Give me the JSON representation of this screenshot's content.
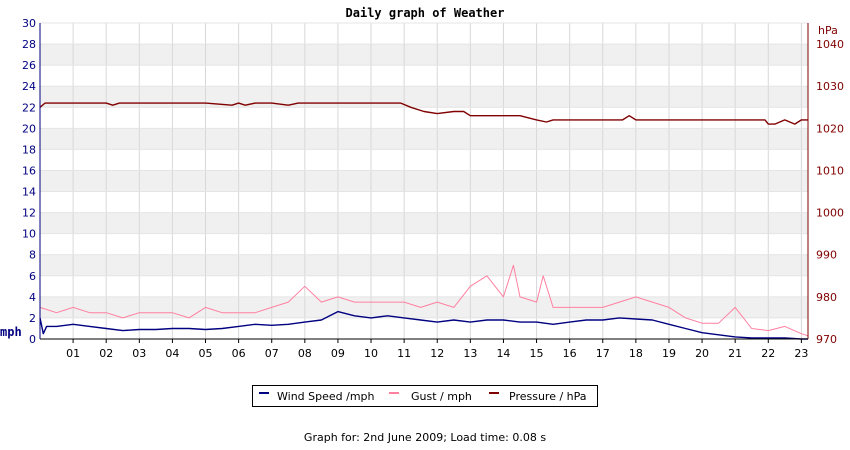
{
  "chart_data": {
    "type": "line",
    "title": "Daily graph of Weather",
    "left_axis": {
      "label": "mph",
      "ylim": [
        0,
        30
      ],
      "ticks": [
        0,
        2,
        4,
        6,
        8,
        10,
        12,
        14,
        16,
        18,
        20,
        22,
        24,
        26,
        28,
        30
      ]
    },
    "right_axis": {
      "label": "hPa",
      "ylim": [
        970,
        1045
      ],
      "ticks": [
        970,
        980,
        990,
        1000,
        1010,
        1020,
        1030,
        1040
      ]
    },
    "x_axis": {
      "xlim": [
        0,
        23.2
      ],
      "tick_labels": [
        "01",
        "02",
        "03",
        "04",
        "05",
        "06",
        "07",
        "08",
        "09",
        "10",
        "11",
        "12",
        "13",
        "14",
        "15",
        "16",
        "17",
        "18",
        "19",
        "20",
        "21",
        "22",
        "23"
      ]
    },
    "grid": true,
    "legend_placement": "bottom-center",
    "series": [
      {
        "name": "Wind Speed /mph",
        "color": "#000080",
        "axis": "left",
        "x": [
          0,
          0.1,
          0.2,
          0.5,
          1,
          1.5,
          2,
          2.5,
          3,
          3.5,
          4,
          4.5,
          5,
          5.5,
          6,
          6.5,
          7,
          7.5,
          8,
          8.5,
          9,
          9.5,
          10,
          10.5,
          11,
          11.5,
          12,
          12.5,
          13,
          13.5,
          14,
          14.5,
          15,
          15.5,
          16,
          16.5,
          17,
          17.5,
          18,
          18.5,
          19,
          19.5,
          20,
          20.5,
          21,
          21.5,
          22,
          22.5,
          23,
          23.2
        ],
        "y": [
          2,
          0.5,
          1.2,
          1.2,
          1.4,
          1.2,
          1,
          0.8,
          0.9,
          0.9,
          1,
          1,
          0.9,
          1,
          1.2,
          1.4,
          1.3,
          1.4,
          1.6,
          1.8,
          2.6,
          2.2,
          2,
          2.2,
          2,
          1.8,
          1.6,
          1.8,
          1.6,
          1.8,
          1.8,
          1.6,
          1.6,
          1.4,
          1.6,
          1.8,
          1.8,
          2,
          1.9,
          1.8,
          1.4,
          1,
          0.6,
          0.4,
          0.2,
          0.1,
          0.1,
          0.1,
          0,
          0
        ]
      },
      {
        "name": "Gust / mph",
        "color": "#ff80a0",
        "axis": "left",
        "x": [
          0,
          0.5,
          1,
          1.5,
          2,
          2.5,
          3,
          3.5,
          4,
          4.5,
          5,
          5.5,
          6,
          6.5,
          7,
          7.5,
          8,
          8.5,
          9,
          9.5,
          10,
          10.5,
          11,
          11.5,
          12,
          12.5,
          13,
          13.5,
          14,
          14.3,
          14.5,
          15,
          15.2,
          15.5,
          16,
          16.5,
          17,
          17.5,
          18,
          18.5,
          19,
          19.5,
          20,
          20.5,
          21,
          21.5,
          22,
          22.5,
          23,
          23.2
        ],
        "y": [
          3,
          2.5,
          3,
          2.5,
          2.5,
          2,
          2.5,
          2.5,
          2.5,
          2,
          3,
          2.5,
          2.5,
          2.5,
          3,
          3.5,
          5,
          3.5,
          4,
          3.5,
          3.5,
          3.5,
          3.5,
          3,
          3.5,
          3,
          5,
          6,
          4,
          7,
          4,
          3.5,
          6,
          3,
          3,
          3,
          3,
          3.5,
          4,
          3.5,
          3,
          2,
          1.5,
          1.5,
          3,
          1,
          0.8,
          1.2,
          0.5,
          0.3
        ]
      },
      {
        "name": "Pressure / hPa",
        "color": "#800000",
        "axis": "right",
        "x": [
          0,
          0.15,
          1,
          2,
          2.2,
          2.4,
          3,
          4,
          5,
          5.8,
          6,
          6.2,
          6.5,
          7,
          7.5,
          7.8,
          8,
          9,
          10,
          10.5,
          10.9,
          11.2,
          11.6,
          12,
          12.5,
          12.8,
          13,
          14,
          14.5,
          15,
          15.3,
          15.5,
          16,
          17,
          17.6,
          17.8,
          18,
          19,
          20,
          21,
          21.5,
          21.9,
          22,
          22.2,
          22.5,
          22.8,
          23,
          23.2
        ],
        "y": [
          1025,
          1026,
          1026,
          1026,
          1025.5,
          1026,
          1026,
          1026,
          1026,
          1025.5,
          1026,
          1025.5,
          1026,
          1026,
          1025.5,
          1026,
          1026,
          1026,
          1026,
          1026,
          1026,
          1025,
          1024,
          1023.5,
          1024,
          1024,
          1023,
          1023,
          1023,
          1022,
          1021.5,
          1022,
          1022,
          1022,
          1022,
          1023,
          1022,
          1022,
          1022,
          1022,
          1022,
          1022,
          1021,
          1021,
          1022,
          1021,
          1022,
          1022
        ]
      }
    ]
  },
  "footer": {
    "text": "Graph for: 2nd June 2009; Load time: 0.08 s"
  }
}
